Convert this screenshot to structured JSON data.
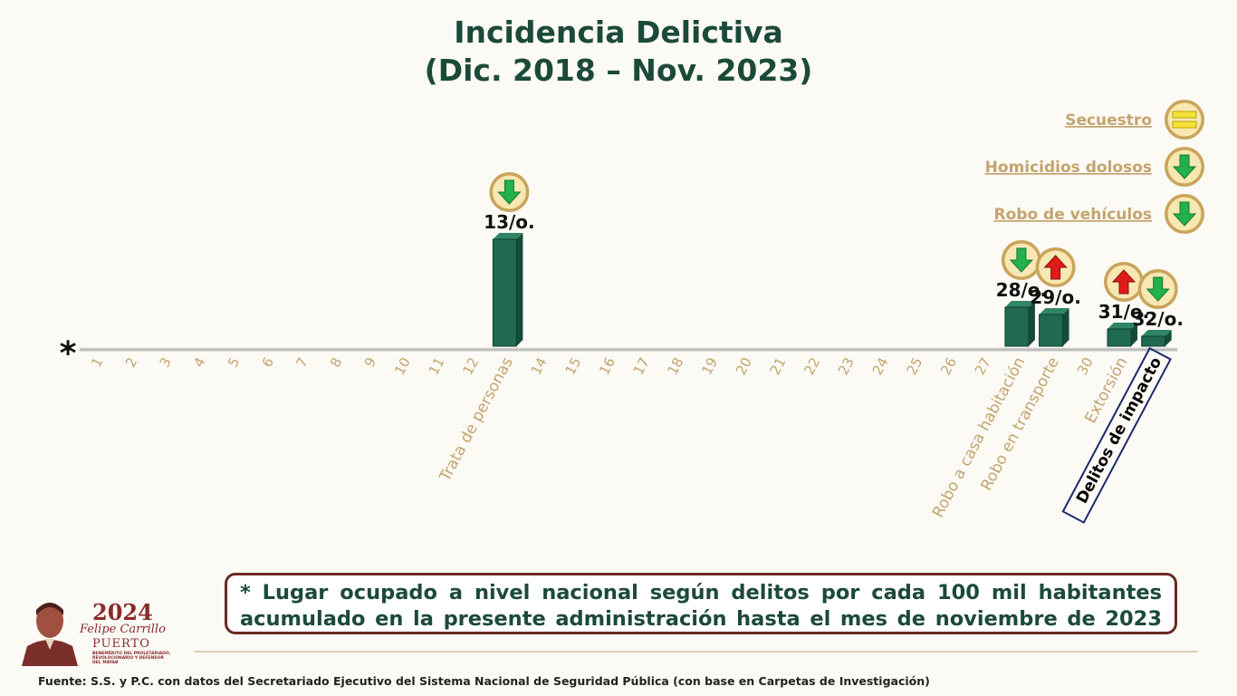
{
  "header": {
    "title_line1": "Incidencia Delictiva",
    "title_line2": "(Dic. 2018 – Nov. 2023)"
  },
  "colors": {
    "title": "#1c4a3a",
    "bar": "#1f6a50",
    "label": "#c4a46e",
    "up_arrow": "#e01b1b",
    "down_arrow": "#22b14c",
    "equal": "#f3e23a",
    "note_border": "#6b2a23"
  },
  "chart_data": {
    "type": "bar",
    "categories": [
      "1",
      "2",
      "3",
      "4",
      "5",
      "6",
      "7",
      "8",
      "9",
      "10",
      "11",
      "12",
      "Trata de personas",
      "14",
      "15",
      "16",
      "17",
      "18",
      "19",
      "20",
      "21",
      "22",
      "23",
      "24",
      "25",
      "26",
      "27",
      "Robo a casa habitación",
      "Robo en transporte",
      "30",
      "Extorsión",
      "Delitos de impacto"
    ],
    "values": [
      0,
      0,
      0,
      0,
      0,
      0,
      0,
      0,
      0,
      0,
      0,
      0,
      13,
      0,
      0,
      0,
      0,
      0,
      0,
      0,
      0,
      0,
      0,
      0,
      0,
      0,
      0,
      28,
      29,
      0,
      31,
      32
    ],
    "highlighted": [
      {
        "category": "Trata de personas",
        "position": 13,
        "label": "13/o.",
        "trend": "down"
      },
      {
        "category": "Robo a casa habitación",
        "position": 28,
        "label": "28/o.",
        "trend": "down"
      },
      {
        "category": "Robo en transporte",
        "position": 29,
        "label": "29/o.",
        "trend": "up"
      },
      {
        "category": "Extorsión",
        "position": 31,
        "label": "31/o.",
        "trend": "up"
      },
      {
        "category": "Delitos de impacto",
        "position": 32,
        "label": "32/o.",
        "trend": "down",
        "boxed": true
      }
    ],
    "axis_marker": "*",
    "legend": [
      {
        "label": "Secuestro",
        "trend": "equal"
      },
      {
        "label": "Homicidios dolosos",
        "trend": "down"
      },
      {
        "label": "Robo de vehículos",
        "trend": "down"
      }
    ],
    "legend_placement": "top-right",
    "grid": false
  },
  "note": {
    "line1": "* Lugar ocupado a nivel nacional según delitos por cada 100 mil habitantes",
    "line2": "acumulado en la presente administración hasta el mes de noviembre de 2023"
  },
  "logo": {
    "year": "2024",
    "name": "Felipe Carrillo",
    "place": "PUERTO",
    "small_text": "BENEMÉRITO DEL PROLETARIADO, REVOLUCIONARIO Y DEFENSOR DEL MAYAB"
  },
  "footer": {
    "source": "Fuente: S.S. y P.C. con datos del Secretariado Ejecutivo del Sistema Nacional de Seguridad Pública (con base en Carpetas de Investigación)"
  }
}
